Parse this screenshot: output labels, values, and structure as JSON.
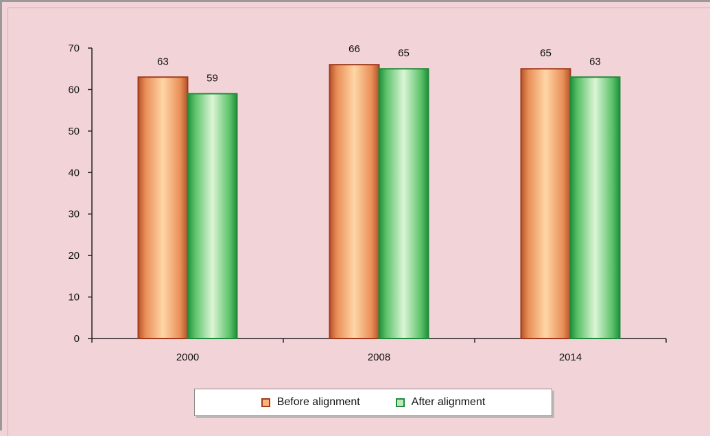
{
  "chart_data": {
    "type": "bar",
    "categories": [
      "2000",
      "2008",
      "2014"
    ],
    "series": [
      {
        "name": "Before alignment",
        "values": [
          63,
          66,
          65
        ],
        "color": "#e8955a",
        "edge": "#a03a1a"
      },
      {
        "name": "After alignment",
        "values": [
          59,
          65,
          63
        ],
        "color": "#5cbf6a",
        "edge": "#1f8a3a"
      }
    ],
    "ylim": [
      0,
      70
    ],
    "yticks": [
      0,
      10,
      20,
      30,
      40,
      50,
      60,
      70
    ],
    "title": "",
    "xlabel": "",
    "ylabel": "",
    "grid": false,
    "legend_position": "bottom",
    "data_labels": true
  },
  "legend": {
    "items": [
      {
        "label": "Before alignment"
      },
      {
        "label": "After alignment"
      }
    ]
  }
}
